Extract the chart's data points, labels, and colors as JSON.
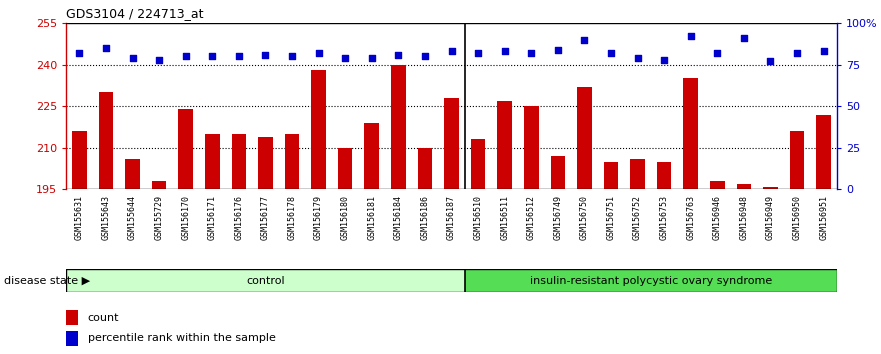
{
  "title": "GDS3104 / 224713_at",
  "samples": [
    "GSM155631",
    "GSM155643",
    "GSM155644",
    "GSM155729",
    "GSM156170",
    "GSM156171",
    "GSM156176",
    "GSM156177",
    "GSM156178",
    "GSM156179",
    "GSM156180",
    "GSM156181",
    "GSM156184",
    "GSM156186",
    "GSM156187",
    "GSM156510",
    "GSM156511",
    "GSM156512",
    "GSM156749",
    "GSM156750",
    "GSM156751",
    "GSM156752",
    "GSM156753",
    "GSM156763",
    "GSM156946",
    "GSM156948",
    "GSM156949",
    "GSM156950",
    "GSM156951"
  ],
  "bar_values": [
    216,
    230,
    206,
    198,
    224,
    215,
    215,
    214,
    215,
    238,
    210,
    219,
    240,
    210,
    228,
    213,
    227,
    225,
    207,
    232,
    205,
    206,
    205,
    235,
    198,
    197,
    196,
    216,
    222
  ],
  "percentile_values": [
    82,
    85,
    79,
    78,
    80,
    80,
    80,
    81,
    80,
    82,
    79,
    79,
    81,
    80,
    83,
    82,
    83,
    82,
    84,
    90,
    82,
    79,
    78,
    92,
    82,
    91,
    77,
    82,
    83
  ],
  "control_count": 15,
  "group1_label": "control",
  "group2_label": "insulin-resistant polycystic ovary syndrome",
  "disease_state_label": "disease state",
  "ymin": 195,
  "ymax": 255,
  "yticks_left": [
    195,
    210,
    225,
    240,
    255
  ],
  "right_yticks": [
    0,
    25,
    50,
    75,
    100
  ],
  "bar_color": "#cc0000",
  "dot_color": "#0000cc",
  "group1_color": "#ccffcc",
  "group2_color": "#55dd55",
  "tick_bg_color": "#d8d8d8",
  "legend_count_label": "count",
  "legend_pct_label": "percentile rank within the sample"
}
